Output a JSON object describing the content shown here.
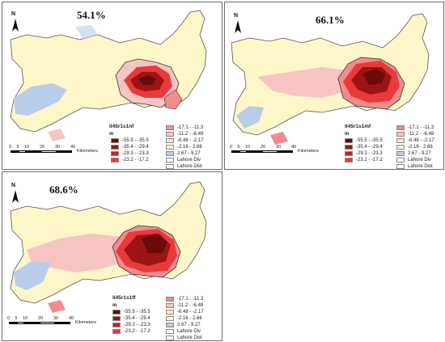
{
  "panels": [
    {
      "percent": "54.1%",
      "layer_name": "ll45r1s1nf",
      "unit": "m"
    },
    {
      "percent": "66.1%",
      "layer_name": "ll45r1s1mf",
      "unit": "m"
    },
    {
      "percent": "68.6%",
      "layer_name": "ll45r1s1ff",
      "unit": "m"
    }
  ],
  "north_label": "N",
  "legend": {
    "classes": [
      {
        "label": "-55.5 - -35.5",
        "color": "#6b0a0a"
      },
      {
        "label": "-35.4 - -29.4",
        "color": "#9e1414"
      },
      {
        "label": "-29.3 - -23.3",
        "color": "#cc1f1f"
      },
      {
        "label": "-23.2 - -17.2",
        "color": "#e83a3a"
      },
      {
        "label": "-17.1 - -11.3",
        "color": "#f28c8c"
      },
      {
        "label": "-11.2 - -6.49",
        "color": "#f7c4c4"
      },
      {
        "label": "-6.48 - -2.17",
        "color": "#fbe6c8"
      },
      {
        "label": "-2.16 - 2.66",
        "color": "#fdf6c9"
      },
      {
        "label": "2.67 - 9.27",
        "color": "#b8cdea"
      },
      {
        "label": "Lahore Div",
        "color": "#ffffff"
      },
      {
        "label": "Lahore Dist",
        "color": "#ffffff"
      }
    ]
  },
  "scale": {
    "ticks": [
      "0",
      "5",
      "10",
      "20",
      "30",
      "40"
    ],
    "unit": "Kilometers"
  },
  "colors": {
    "yellow": "#fdf6c9",
    "blue": "#b8cdea",
    "pink": "#f7c4c4",
    "dark": "#6b0a0a"
  }
}
